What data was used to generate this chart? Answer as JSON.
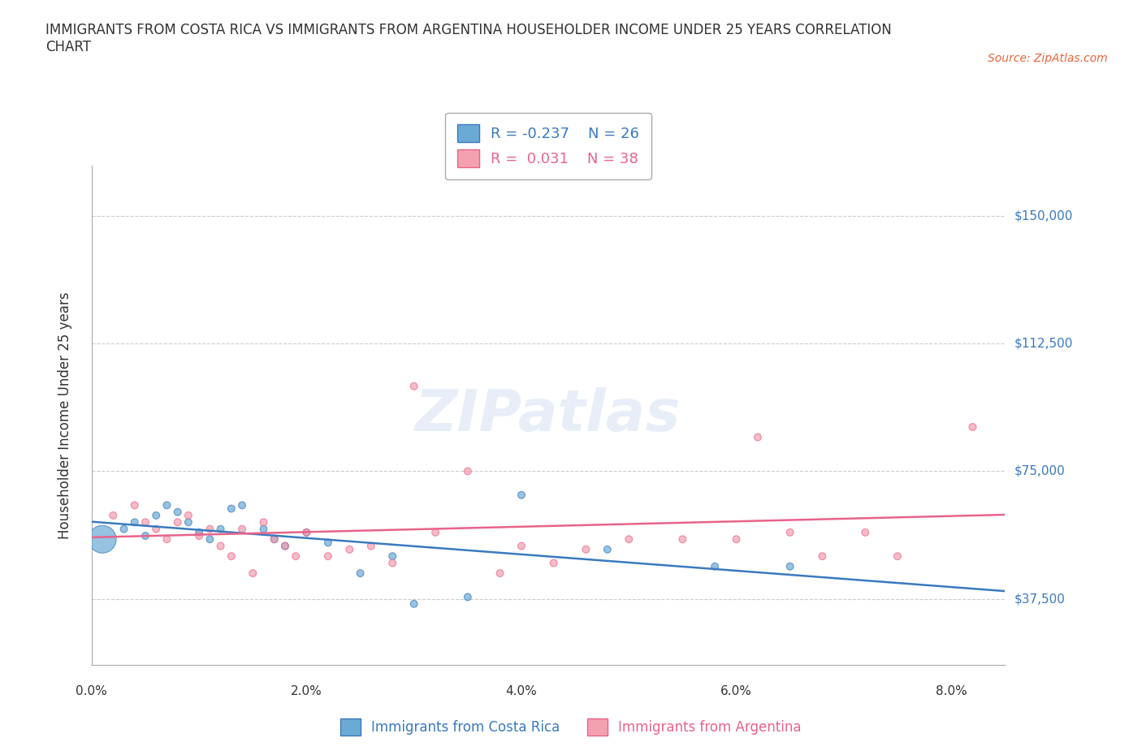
{
  "title": "IMMIGRANTS FROM COSTA RICA VS IMMIGRANTS FROM ARGENTINA HOUSEHOLDER INCOME UNDER 25 YEARS CORRELATION\nCHART",
  "source": "Source: ZipAtlas.com",
  "ylabel": "Householder Income Under 25 years",
  "xlabel_ticks": [
    "0.0%",
    "2.0%",
    "4.0%",
    "6.0%",
    "8.0%"
  ],
  "xlabel_vals": [
    0.0,
    0.02,
    0.04,
    0.06,
    0.08
  ],
  "ytick_labels": [
    "$37,500",
    "$75,000",
    "$112,500",
    "$150,000"
  ],
  "ytick_vals": [
    37500,
    75000,
    112500,
    150000
  ],
  "xlim": [
    0.0,
    0.085
  ],
  "ylim": [
    18000,
    165000
  ],
  "costa_rica_R": -0.237,
  "costa_rica_N": 26,
  "argentina_R": 0.031,
  "argentina_N": 38,
  "costa_rica_color": "#6aaad4",
  "argentina_color": "#f4a0b0",
  "costa_rica_line_color": "#3a7abf",
  "argentina_line_color": "#e8638a",
  "watermark": "ZIPatlas",
  "costa_rica_x": [
    0.001,
    0.003,
    0.004,
    0.005,
    0.006,
    0.007,
    0.008,
    0.009,
    0.01,
    0.011,
    0.012,
    0.013,
    0.014,
    0.016,
    0.017,
    0.018,
    0.02,
    0.022,
    0.025,
    0.028,
    0.03,
    0.035,
    0.04,
    0.048,
    0.058,
    0.065
  ],
  "costa_rica_y": [
    55000,
    58000,
    60000,
    56000,
    62000,
    65000,
    63000,
    60000,
    57000,
    55000,
    58000,
    64000,
    65000,
    58000,
    55000,
    53000,
    57000,
    54000,
    45000,
    50000,
    36000,
    38000,
    68000,
    52000,
    47000,
    47000
  ],
  "costa_rica_size": [
    600,
    40,
    40,
    40,
    40,
    40,
    40,
    40,
    40,
    40,
    40,
    40,
    40,
    40,
    40,
    40,
    40,
    40,
    40,
    40,
    40,
    40,
    40,
    40,
    40,
    40
  ],
  "argentina_x": [
    0.002,
    0.004,
    0.005,
    0.006,
    0.007,
    0.008,
    0.009,
    0.01,
    0.011,
    0.012,
    0.013,
    0.014,
    0.015,
    0.016,
    0.017,
    0.018,
    0.019,
    0.02,
    0.022,
    0.024,
    0.026,
    0.028,
    0.03,
    0.032,
    0.035,
    0.038,
    0.04,
    0.043,
    0.046,
    0.05,
    0.055,
    0.06,
    0.062,
    0.065,
    0.068,
    0.072,
    0.075,
    0.082
  ],
  "argentina_y": [
    62000,
    65000,
    60000,
    58000,
    55000,
    60000,
    62000,
    56000,
    58000,
    53000,
    50000,
    58000,
    45000,
    60000,
    55000,
    53000,
    50000,
    57000,
    50000,
    52000,
    53000,
    48000,
    100000,
    57000,
    75000,
    45000,
    53000,
    48000,
    52000,
    55000,
    55000,
    55000,
    85000,
    57000,
    50000,
    57000,
    50000,
    88000
  ],
  "argentina_size": [
    40,
    40,
    40,
    40,
    40,
    40,
    40,
    40,
    40,
    40,
    40,
    40,
    40,
    40,
    40,
    40,
    40,
    40,
    40,
    40,
    40,
    40,
    40,
    40,
    40,
    40,
    40,
    40,
    40,
    40,
    40,
    40,
    40,
    40,
    40,
    40,
    40,
    40
  ],
  "background_color": "#ffffff",
  "grid_color": "#cccccc"
}
